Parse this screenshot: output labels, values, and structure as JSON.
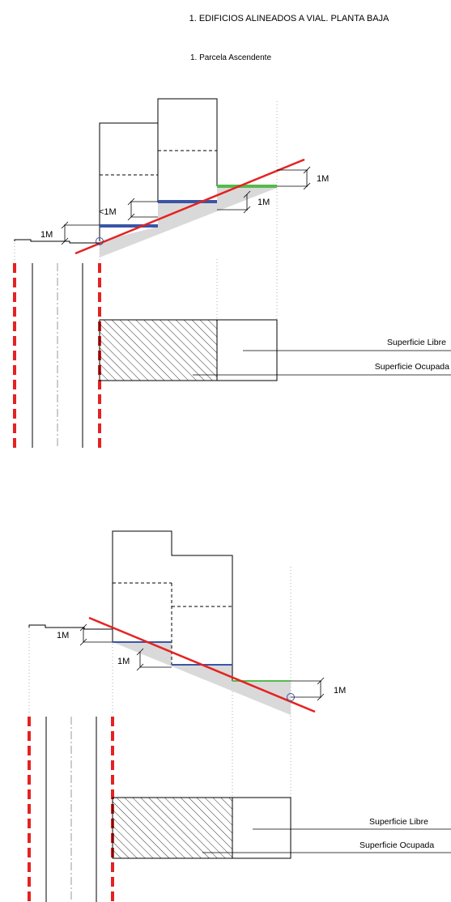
{
  "heading": {
    "title": "1. EDIFICIOS ALINEADOS A VIAL. PLANTA BAJA",
    "subtitle": "1. Parcela Ascendente"
  },
  "diagram_top": {
    "dims": {
      "left": "1M",
      "less_than": "<1M",
      "middle": "1M",
      "right": "1M"
    },
    "plan_labels": {
      "free": "Superficie Libre",
      "occupied": "Superficie Ocupada"
    }
  },
  "diagram_bottom": {
    "dims": {
      "left": "1M",
      "middle": "1M",
      "right": "1M"
    },
    "plan_labels": {
      "free": "Superficie Libre",
      "occupied": "Superficie Ocupada"
    }
  },
  "colors": {
    "red": "#e52222",
    "blue": "#3a55a6",
    "green": "#55bb4c",
    "gray": "#d9d9d9"
  }
}
